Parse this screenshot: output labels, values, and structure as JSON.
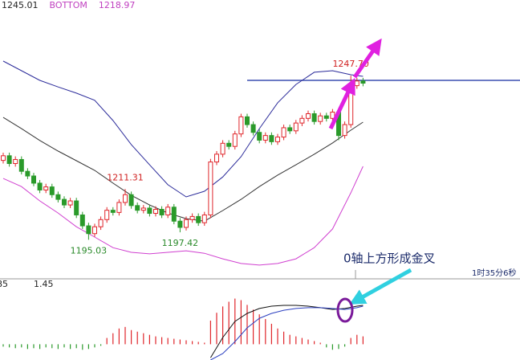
{
  "chart_data": {
    "type": "candlestick",
    "header_texts": [
      "1245.01",
      "BOTTOM",
      "1218.97"
    ],
    "header_colors": [
      "#222222",
      "#c040c0",
      "#c040c0"
    ],
    "ylim": [
      1183,
      1272
    ],
    "up_color": "#e0262b",
    "down_color": "#2a9a2a",
    "open": [
      1220.5,
      1222.0,
      1219.5,
      1220.8,
      1217.0,
      1215.5,
      1213.2,
      1211.0,
      1212.0,
      1209.5,
      1208.0,
      1206.2,
      1207.5,
      1203.0,
      1199.5,
      1197.0,
      1199.2,
      1201.5,
      1204.5,
      1203.8,
      1207.0,
      1209.5,
      1206.0,
      1204.5,
      1205.2,
      1203.5,
      1204.8,
      1203.0,
      1205.5,
      1201.0,
      1199.0,
      1201.5,
      1202.5,
      1200.5,
      1203.0,
      1220.0,
      1222.5,
      1226.0,
      1225.0,
      1229.0,
      1234.5,
      1232.0,
      1229.5,
      1227.0,
      1228.5,
      1226.5,
      1228.0,
      1231.0,
      1230.0,
      1232.5,
      1234.0,
      1235.5,
      1233.0,
      1234.8,
      1234.0,
      1236.0,
      1228.5,
      1232.0,
      1244.5,
      1246.0
    ],
    "high": [
      1223.0,
      1223.0,
      1221.8,
      1221.8,
      1218.0,
      1216.5,
      1214.2,
      1213.0,
      1213.0,
      1210.5,
      1209.0,
      1208.5,
      1208.5,
      1204.0,
      1200.5,
      1200.2,
      1202.5,
      1205.5,
      1205.5,
      1208.0,
      1211.31,
      1210.5,
      1207.0,
      1206.2,
      1206.2,
      1205.8,
      1205.8,
      1206.5,
      1206.5,
      1202.0,
      1202.5,
      1203.5,
      1203.5,
      1204.0,
      1221.0,
      1223.5,
      1227.0,
      1227.0,
      1230.0,
      1235.5,
      1235.5,
      1233.0,
      1230.5,
      1229.5,
      1229.5,
      1229.0,
      1232.0,
      1232.0,
      1233.5,
      1235.0,
      1236.5,
      1236.5,
      1235.8,
      1235.8,
      1237.0,
      1237.0,
      1233.0,
      1247.7,
      1247.0,
      1247.0
    ],
    "low": [
      1219.5,
      1218.5,
      1218.5,
      1216.0,
      1214.5,
      1212.2,
      1210.0,
      1210.0,
      1208.5,
      1207.0,
      1205.2,
      1205.2,
      1202.0,
      1198.5,
      1195.03,
      1196.0,
      1198.2,
      1200.5,
      1202.8,
      1202.8,
      1206.0,
      1205.0,
      1203.5,
      1203.5,
      1202.5,
      1202.5,
      1202.0,
      1202.0,
      1200.0,
      1197.42,
      1198.0,
      1200.5,
      1199.5,
      1199.5,
      1202.0,
      1219.0,
      1221.5,
      1224.0,
      1224.0,
      1228.0,
      1231.0,
      1228.5,
      1226.0,
      1226.0,
      1225.5,
      1225.5,
      1227.0,
      1229.0,
      1229.0,
      1231.5,
      1233.0,
      1232.0,
      1232.0,
      1233.0,
      1233.0,
      1227.0,
      1227.5,
      1231.0,
      1243.5,
      1244.3
    ],
    "close": [
      1222.0,
      1219.5,
      1220.8,
      1217.0,
      1215.5,
      1213.2,
      1211.0,
      1212.0,
      1209.5,
      1208.0,
      1206.2,
      1207.5,
      1203.0,
      1199.5,
      1197.0,
      1199.2,
      1201.5,
      1204.5,
      1203.8,
      1207.0,
      1209.5,
      1206.0,
      1204.5,
      1205.2,
      1203.5,
      1204.8,
      1203.0,
      1205.5,
      1201.0,
      1199.0,
      1201.5,
      1202.5,
      1200.5,
      1203.0,
      1220.0,
      1222.5,
      1226.0,
      1225.0,
      1229.0,
      1234.5,
      1232.0,
      1229.5,
      1227.0,
      1228.5,
      1226.5,
      1228.0,
      1231.0,
      1230.0,
      1232.5,
      1234.0,
      1235.5,
      1233.0,
      1234.8,
      1234.0,
      1236.0,
      1228.5,
      1232.0,
      1244.5,
      1246.0,
      1245.3
    ],
    "annotations": [
      "1247.70",
      "1211.31",
      "1195.03",
      "1197.42"
    ],
    "overlays": [
      {
        "color": "#2b2b9a",
        "x": [
          0,
          3,
          6,
          9,
          12,
          15,
          18,
          21,
          24,
          27,
          30,
          33,
          36,
          39,
          42,
          45,
          48,
          51,
          54,
          57,
          59
        ],
        "values": [
          1252.4,
          1249.3,
          1246.2,
          1244.1,
          1242.1,
          1239.8,
          1233.3,
          1225.6,
          1219.1,
          1212.7,
          1208.8,
          1210.6,
          1215.2,
          1221.7,
          1230.7,
          1239.0,
          1244.9,
          1248.8,
          1249.3,
          1248.0,
          1247.5
        ]
      },
      {
        "color": "#333333",
        "x": [
          0,
          3,
          6,
          9,
          12,
          15,
          18,
          21,
          24,
          27,
          30,
          33,
          36,
          39,
          42,
          45,
          48,
          51,
          54,
          57,
          59
        ],
        "values": [
          1234.3,
          1230.7,
          1226.9,
          1223.5,
          1220.4,
          1217.3,
          1213.2,
          1209.3,
          1206.2,
          1203.6,
          1201.8,
          1201.0,
          1204.4,
          1208.0,
          1212.1,
          1215.8,
          1219.1,
          1222.5,
          1226.1,
          1230.2,
          1232.8
        ]
      },
      {
        "color": "#d040d0",
        "x": [
          0,
          3,
          6,
          9,
          12,
          15,
          18,
          21,
          24,
          27,
          30,
          33,
          36,
          39,
          42,
          45,
          48,
          51,
          54,
          57,
          59
        ],
        "values": [
          1214.7,
          1212.1,
          1207.5,
          1203.6,
          1199.2,
          1195.9,
          1192.5,
          1191.0,
          1190.5,
          1191.0,
          1191.5,
          1190.7,
          1188.9,
          1187.4,
          1186.9,
          1187.4,
          1188.9,
          1192.5,
          1198.5,
          1210.1,
          1218.6
        ]
      }
    ],
    "ref_line": {
      "value": 1246.2,
      "color": "#3a4fb0"
    },
    "note": "0轴上方形成金叉",
    "time_label": "1时35分6秒",
    "macd": {
      "header_texts": [
        "85",
        "1.45"
      ],
      "ylim": [
        -1.0,
        4.0
      ],
      "histogram": [
        -0.15,
        -0.2,
        -0.25,
        -0.2,
        -0.3,
        -0.25,
        -0.3,
        -0.2,
        -0.25,
        -0.3,
        -0.2,
        -0.3,
        -0.25,
        -0.35,
        -0.3,
        -0.2,
        -0.1,
        0.4,
        0.7,
        1.0,
        1.1,
        0.9,
        0.8,
        0.7,
        0.6,
        0.5,
        0.45,
        0.4,
        0.35,
        0.3,
        0.25,
        0.2,
        0.15,
        0.1,
        1.5,
        2.0,
        2.4,
        2.7,
        2.9,
        2.8,
        2.5,
        2.2,
        1.9,
        1.6,
        1.3,
        1.0,
        0.8,
        0.6,
        0.5,
        0.4,
        0.3,
        0.2,
        0.1,
        -0.2,
        -0.35,
        -0.3,
        -0.15,
        0.4,
        0.6,
        0.5
      ],
      "lines": [
        {
          "color": "#111111",
          "x": [
            34,
            36,
            38,
            40,
            42,
            44,
            46,
            48,
            50,
            52,
            54,
            56,
            58,
            59
          ],
          "values": [
            -0.85,
            0.43,
            1.45,
            1.96,
            2.27,
            2.42,
            2.47,
            2.47,
            2.42,
            2.32,
            2.21,
            2.27,
            2.42,
            2.47
          ]
        },
        {
          "color": "#2b3fc0",
          "x": [
            34,
            36,
            38,
            40,
            42,
            44,
            46,
            48,
            50,
            52,
            54,
            56,
            58,
            59
          ],
          "values": [
            -1.0,
            -0.59,
            0.17,
            1.04,
            1.65,
            1.96,
            2.16,
            2.27,
            2.32,
            2.32,
            2.27,
            2.21,
            2.32,
            2.42
          ]
        }
      ]
    }
  }
}
